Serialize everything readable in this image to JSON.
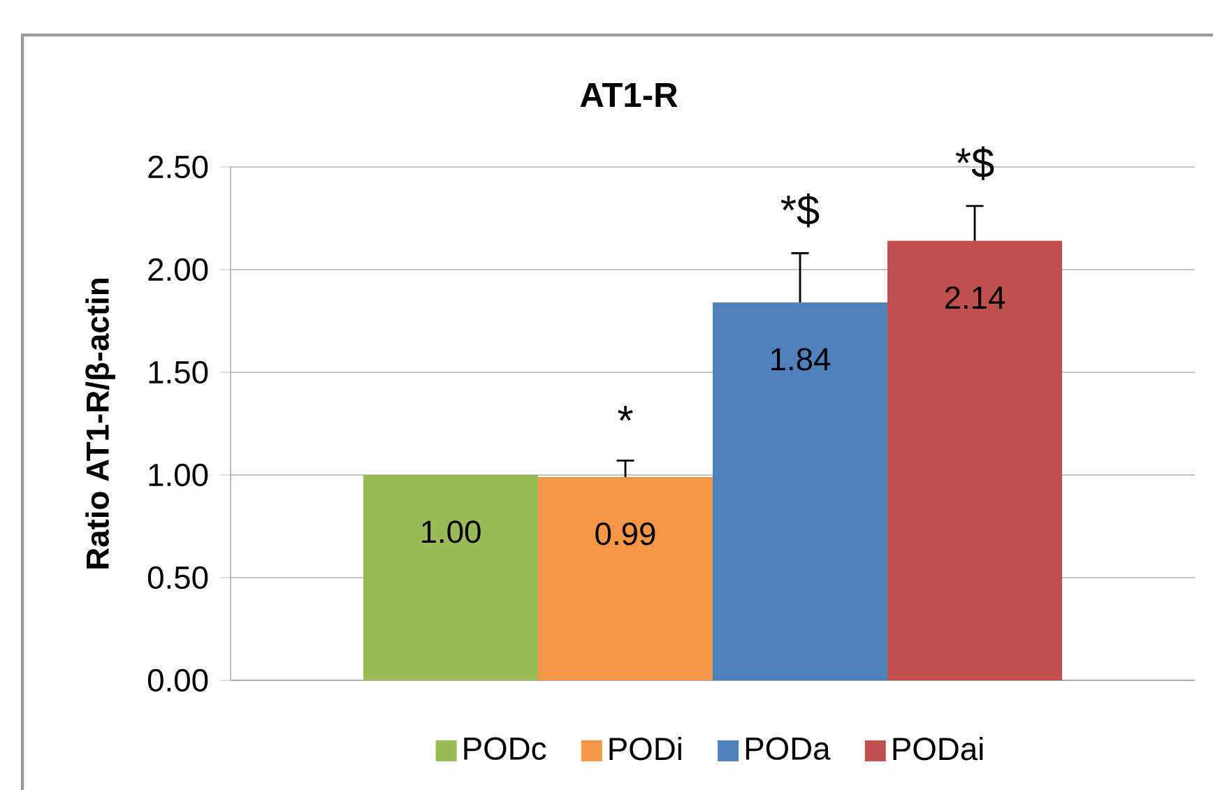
{
  "chart_data": {
    "type": "bar",
    "title": "AT1-R",
    "ylabel": "Ratio AT1-R/β-actin",
    "categories": [
      null
    ],
    "series": [
      {
        "name": "PODc",
        "color": "#9bbb59",
        "values": [
          1.0
        ],
        "value_labels": [
          "1.00"
        ]
      },
      {
        "name": "PODi",
        "color": "#f79646",
        "values": [
          0.99
        ],
        "value_labels": [
          "0.99"
        ],
        "errors": [
          [
            0.99,
            1.07
          ]
        ]
      },
      {
        "name": "PODa",
        "color": "#4f81bd",
        "values": [
          1.84
        ],
        "value_labels": [
          "1.84"
        ],
        "errors": [
          [
            1.84,
            2.08
          ]
        ]
      },
      {
        "name": "PODai",
        "color": "#c0504d",
        "values": [
          2.14
        ],
        "value_labels": [
          "2.14"
        ],
        "errors": [
          [
            2.14,
            2.31
          ]
        ]
      }
    ],
    "annotations": [
      "*",
      "*$",
      "*$"
    ],
    "ylim": [
      0,
      2.5
    ],
    "yticks": [
      {
        "value": 0,
        "label": "0.00"
      },
      {
        "value": 0.5,
        "label": "0.50"
      },
      {
        "value": 1,
        "label": "1.00"
      },
      {
        "value": 1.5,
        "label": "1.50"
      },
      {
        "value": 2,
        "label": "2.00"
      },
      {
        "value": 2.5,
        "label": "2.50"
      }
    ],
    "grid": "y",
    "legend": "bottom"
  }
}
